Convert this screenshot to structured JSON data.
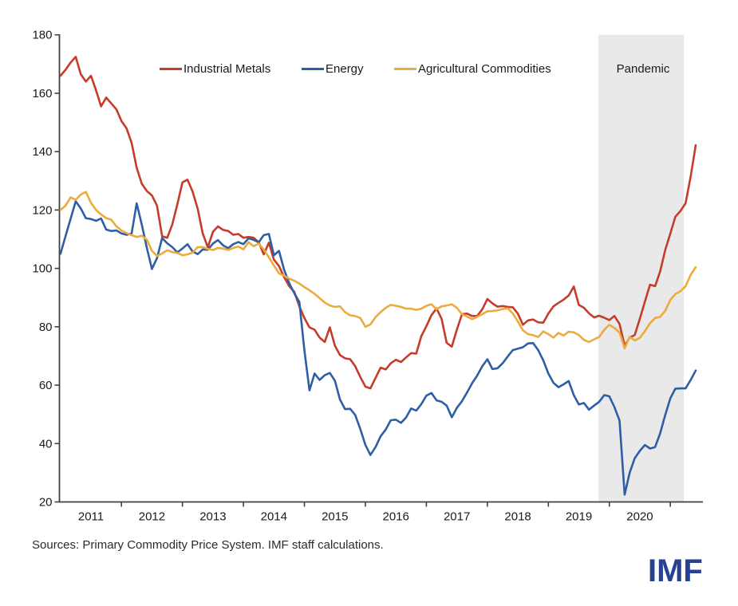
{
  "chart_data": {
    "type": "line",
    "title": "",
    "x_axis": {
      "start_year": 2010.5,
      "step_months": 1,
      "year_labels": [
        2011,
        2012,
        2013,
        2014,
        2015,
        2016,
        2017,
        2018,
        2019,
        2020
      ]
    },
    "y_axis": {
      "min": 20,
      "max": 180,
      "ticks": [
        20,
        40,
        60,
        80,
        100,
        120,
        140,
        160,
        180
      ]
    },
    "grid": "off",
    "legend_position": "top",
    "pandemic_band": {
      "label": "Pandemic",
      "start_year": 2019.32,
      "end_year": 2020.72,
      "color": "#e9e9e9"
    },
    "series": [
      {
        "name": "Industrial Metals",
        "color": "#c53c2b",
        "values": [
          166,
          168,
          170.5,
          172.5,
          166.5,
          164,
          166,
          161,
          155.5,
          158.5,
          156.5,
          154.5,
          150.5,
          148,
          143,
          134.5,
          129,
          126.5,
          125,
          121.5,
          111,
          110.5,
          115,
          122,
          129.5,
          130.4,
          126.3,
          120.4,
          112,
          107.2,
          112.5,
          114.4,
          113.2,
          112.8,
          111.5,
          111.8,
          110.5,
          110.8,
          110.5,
          109,
          104.8,
          108.8,
          103,
          100.8,
          97,
          93.9,
          92,
          87,
          83,
          79.8,
          79,
          76.3,
          74.8,
          79.8,
          73.5,
          70.3,
          69.2,
          68.9,
          66.5,
          62.8,
          59.5,
          58.9,
          62.5,
          66,
          65.4,
          67.5,
          68.7,
          67.9,
          69.5,
          71,
          70.8,
          76.8,
          80.2,
          84,
          86.3,
          82.7,
          74.5,
          73.2,
          79,
          84.3,
          84.5,
          83.7,
          83.7,
          86,
          89.5,
          88,
          86.9,
          87.1,
          86.8,
          86.7,
          84.5,
          80.7,
          82.2,
          82.5,
          81.5,
          81.4,
          84.5,
          87,
          88.2,
          89.3,
          90.7,
          93.8,
          87.5,
          86.5,
          84.6,
          83.2,
          83.8,
          83.1,
          82.3,
          83.7,
          81,
          73.5,
          76.3,
          77.2,
          82.8,
          88.6,
          94.4,
          93.9,
          99,
          106.3,
          112,
          117.7,
          119.7,
          122.3,
          131.5,
          142.2
        ]
      },
      {
        "name": "Energy",
        "color": "#2e5ea6",
        "values": [
          105,
          111,
          117,
          123,
          120.5,
          117.2,
          116.9,
          116.3,
          117.1,
          113.3,
          112.8,
          113,
          112,
          111.5,
          112,
          122.3,
          115,
          107,
          99.8,
          103.5,
          110.4,
          108.6,
          107.3,
          105.5,
          106.8,
          108.3,
          105.8,
          104.9,
          106.5,
          106.4,
          108.5,
          109.7,
          107.9,
          106.9,
          108.3,
          109,
          108.3,
          110.3,
          109.8,
          108.9,
          111.4,
          111.8,
          104.5,
          106,
          99.5,
          95,
          91.5,
          88.5,
          72,
          58.2,
          64,
          61.8,
          63.4,
          64.2,
          61.5,
          55.1,
          51.8,
          51.9,
          49.8,
          45,
          39.5,
          36.1,
          38.8,
          42.5,
          44.8,
          48,
          48.2,
          47.1,
          48.9,
          52,
          51.3,
          53.5,
          56.4,
          57.3,
          54.8,
          54.3,
          53,
          49,
          52.2,
          54.5,
          57.5,
          60.7,
          63.3,
          66.5,
          68.9,
          65.5,
          65.8,
          67.5,
          69.8,
          72,
          72.5,
          73,
          74.3,
          74.4,
          72,
          68.5,
          64,
          60.8,
          59.3,
          60.3,
          61.4,
          56.6,
          53.4,
          53.9,
          51.6,
          53,
          54.3,
          56.6,
          56.2,
          52.5,
          47.9,
          22.5,
          30,
          35,
          37.5,
          39.5,
          38.3,
          38.8,
          43.5,
          49.8,
          55.5,
          58.8,
          58.9,
          58.9,
          61.8,
          65
        ]
      },
      {
        "name": "Agricultural Commodities",
        "color": "#edab3c",
        "values": [
          120,
          121.5,
          124.3,
          123.5,
          125.3,
          126.2,
          122.5,
          120,
          118.5,
          117.2,
          116.7,
          114.4,
          113,
          112.1,
          111.4,
          110.8,
          111.2,
          109.8,
          106,
          104.3,
          105.1,
          106.2,
          105.6,
          105.3,
          104.5,
          104.8,
          105.4,
          107.3,
          107.3,
          106.7,
          106.3,
          107,
          106.8,
          106.3,
          107,
          107.5,
          106.5,
          109,
          107.6,
          108.5,
          106.5,
          103.8,
          101,
          98.3,
          97.5,
          96.5,
          95.8,
          94.8,
          93.6,
          92.5,
          91.3,
          89.8,
          88.3,
          87.3,
          86.8,
          87,
          85,
          83.9,
          83.7,
          83,
          80,
          80.8,
          83.3,
          85,
          86.5,
          87.5,
          87.2,
          86.8,
          86.2,
          86.2,
          85.8,
          86.2,
          87.2,
          87.7,
          86,
          87,
          87.3,
          87.7,
          86.5,
          84.3,
          83.5,
          82.6,
          83.4,
          84.3,
          85.3,
          85.4,
          85.6,
          86.1,
          86.3,
          84.6,
          81.8,
          78.8,
          77.5,
          77.1,
          76.5,
          78.4,
          77.5,
          76.3,
          77.9,
          77,
          78.3,
          78.1,
          77.2,
          75.5,
          74.8,
          75.7,
          76.5,
          79,
          80.7,
          79.6,
          78,
          72.6,
          76.6,
          75.3,
          76.2,
          78.5,
          81.2,
          83,
          83.4,
          85.5,
          89.2,
          91.2,
          92.2,
          93.9,
          97.8,
          100.4
        ]
      }
    ]
  },
  "legend": {
    "items": [
      {
        "label": "Industrial Metals",
        "color": "#c53c2b"
      },
      {
        "label": "Energy",
        "color": "#2e5ea6"
      },
      {
        "label": "Agricultural Commodities",
        "color": "#edab3c"
      }
    ]
  },
  "band_label": "Pandemic",
  "sources_note": "Sources: Primary Commodity Price System. IMF staff calculations.",
  "logo": {
    "text": "IMF",
    "color": "#26418f"
  }
}
